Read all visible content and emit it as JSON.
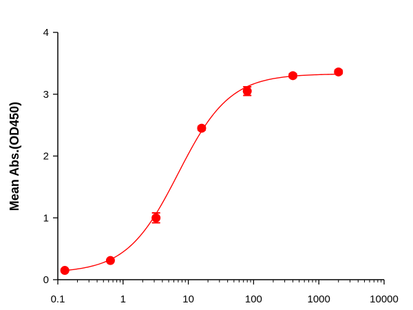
{
  "chart_data": {
    "type": "scatter",
    "title": "",
    "xlabel": "",
    "ylabel": "Mean Abs.(OD450)",
    "x_scale": "log",
    "xlim": [
      0.1,
      10000
    ],
    "ylim": [
      0,
      4
    ],
    "x_ticks": [
      0.1,
      1,
      10,
      100,
      1000,
      10000
    ],
    "x_tick_labels": [
      "0.1",
      "1",
      "10",
      "100",
      "1000",
      "10000"
    ],
    "y_ticks": [
      0,
      1,
      2,
      3,
      4
    ],
    "y_tick_labels": [
      "0",
      "1",
      "2",
      "3",
      "4"
    ],
    "grid": false,
    "legend": "none",
    "color": "#ff0000",
    "series": [
      {
        "x": [
          0.128,
          0.64,
          3.2,
          16,
          80,
          400,
          2000
        ],
        "y": [
          0.15,
          0.31,
          1.0,
          2.45,
          3.05,
          3.3,
          3.36
        ],
        "y_error": [
          0.02,
          0.02,
          0.08,
          0.03,
          0.07,
          0.03,
          0.03
        ],
        "marker": "circle",
        "fit": "4PL sigmoid"
      }
    ],
    "fit_params": {
      "bottom": 0.11,
      "top": 3.33,
      "ec50": 7.0,
      "hill": 1.1
    }
  }
}
